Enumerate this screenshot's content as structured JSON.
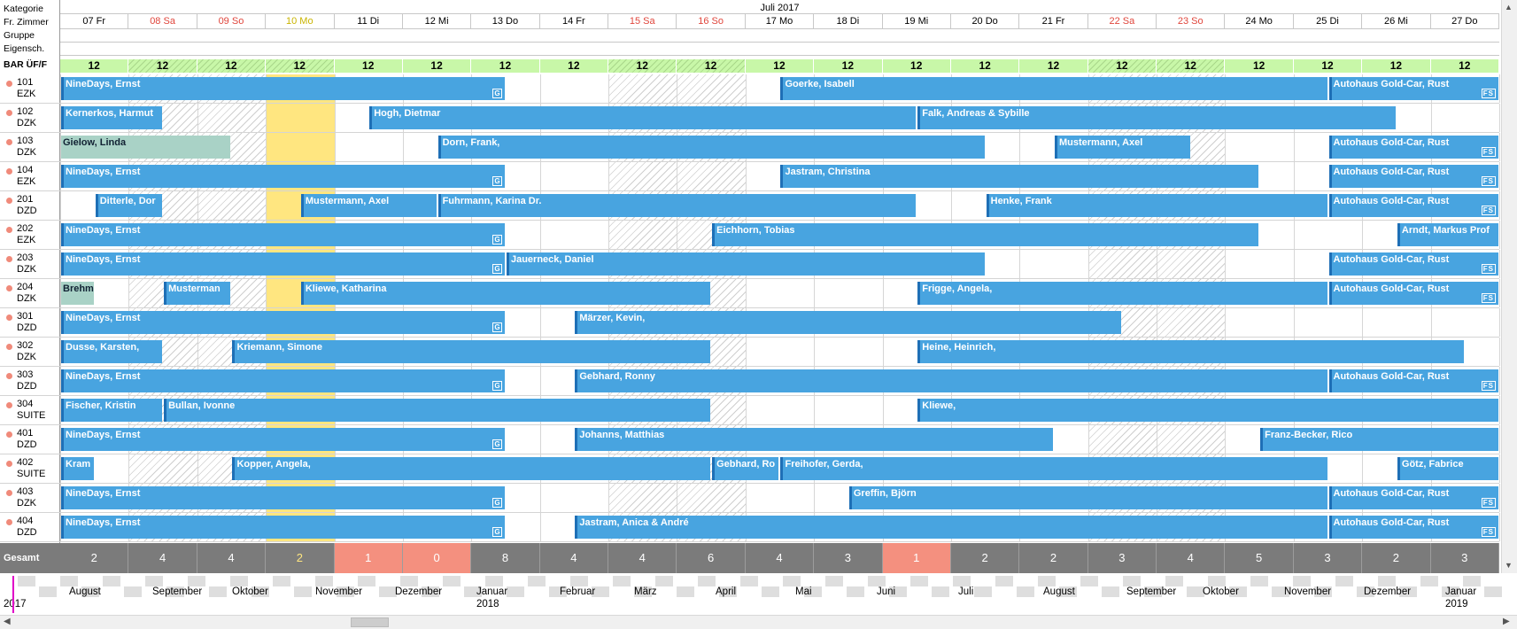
{
  "sidebar": {
    "kategorie": "Kategorie",
    "fr_zimmer": "Fr. Zimmer",
    "gruppe": "Gruppe",
    "eigensch": "Eigensch.",
    "bar": "BAR ÜF/F",
    "gesamt": "Gesamt"
  },
  "header": {
    "month": "Juli 2017"
  },
  "days": [
    {
      "label": "07 Fr",
      "color": "normal"
    },
    {
      "label": "08 Sa",
      "color": "red"
    },
    {
      "label": "09 So",
      "color": "red"
    },
    {
      "label": "10 Mo",
      "color": "yellow"
    },
    {
      "label": "11 Di",
      "color": "normal"
    },
    {
      "label": "12 Mi",
      "color": "normal"
    },
    {
      "label": "13 Do",
      "color": "normal"
    },
    {
      "label": "14 Fr",
      "color": "normal"
    },
    {
      "label": "15 Sa",
      "color": "red"
    },
    {
      "label": "16 So",
      "color": "red"
    },
    {
      "label": "17 Mo",
      "color": "normal"
    },
    {
      "label": "18 Di",
      "color": "normal"
    },
    {
      "label": "19 Mi",
      "color": "normal"
    },
    {
      "label": "20 Do",
      "color": "normal"
    },
    {
      "label": "21 Fr",
      "color": "normal"
    },
    {
      "label": "22 Sa",
      "color": "red"
    },
    {
      "label": "23 So",
      "color": "red"
    },
    {
      "label": "24 Mo",
      "color": "normal"
    },
    {
      "label": "25 Di",
      "color": "normal"
    },
    {
      "label": "26 Mi",
      "color": "normal"
    },
    {
      "label": "27 Do",
      "color": "normal"
    }
  ],
  "rates": [
    "12",
    "12",
    "12",
    "12",
    "12",
    "12",
    "12",
    "12",
    "12",
    "12",
    "12",
    "12",
    "12",
    "12",
    "12",
    "12",
    "12",
    "12",
    "12",
    "12",
    "12"
  ],
  "rooms": [
    {
      "num": "101",
      "cat": "EZK",
      "bookings": [
        {
          "name": "NineDays, Ernst",
          "from": 0,
          "to": 6.5,
          "badge": "G"
        },
        {
          "name": "Goerke, Isabell",
          "from": 10.5,
          "to": 18.5
        },
        {
          "name": "Autohaus Gold-Car, Rust",
          "from": 18.5,
          "to": 21,
          "badge": "FS"
        }
      ]
    },
    {
      "num": "102",
      "cat": "DZK",
      "bookings": [
        {
          "name": "Kernerkos, Harmut",
          "from": 0,
          "to": 1.5
        },
        {
          "name": "Hogh, Dietmar",
          "from": 4.5,
          "to": 12.5
        },
        {
          "name": "Falk, Andreas & Sybille",
          "from": 12.5,
          "to": 19.5
        }
      ]
    },
    {
      "num": "103",
      "cat": "DZK",
      "bookings": [
        {
          "name": "Gielow, Linda",
          "from": 0,
          "to": 2.5,
          "teal": true
        },
        {
          "name": "Dorn, Frank,",
          "from": 5.5,
          "to": 13.5
        },
        {
          "name": "Mustermann, Axel",
          "from": 14.5,
          "to": 16.5
        },
        {
          "name": "Autohaus Gold-Car, Rust",
          "from": 18.5,
          "to": 21,
          "badge": "FS"
        }
      ]
    },
    {
      "num": "104",
      "cat": "EZK",
      "bookings": [
        {
          "name": "NineDays, Ernst",
          "from": 0,
          "to": 6.5,
          "badge": "G"
        },
        {
          "name": "Jastram, Christina",
          "from": 10.5,
          "to": 17.5
        },
        {
          "name": "Autohaus Gold-Car, Rust",
          "from": 18.5,
          "to": 21,
          "badge": "FS"
        }
      ]
    },
    {
      "num": "201",
      "cat": "DZD",
      "bookings": [
        {
          "name": "Ditterle, Dor",
          "from": 0.5,
          "to": 1.5
        },
        {
          "name": "Mustermann, Axel",
          "from": 3.5,
          "to": 5.5
        },
        {
          "name": "Fuhrmann, Karina Dr.",
          "from": 5.5,
          "to": 12.5
        },
        {
          "name": "Henke, Frank",
          "from": 13.5,
          "to": 18.5
        },
        {
          "name": "Autohaus Gold-Car, Rust",
          "from": 18.5,
          "to": 21,
          "badge": "FS"
        }
      ]
    },
    {
      "num": "202",
      "cat": "EZK",
      "bookings": [
        {
          "name": "NineDays, Ernst",
          "from": 0,
          "to": 6.5,
          "badge": "G"
        },
        {
          "name": "Eichhorn, Tobias",
          "from": 9.5,
          "to": 17.5
        },
        {
          "name": "Arndt, Markus Prof",
          "from": 19.5,
          "to": 21
        }
      ]
    },
    {
      "num": "203",
      "cat": "DZK",
      "bookings": [
        {
          "name": "NineDays, Ernst",
          "from": 0,
          "to": 6.5,
          "badge": "G"
        },
        {
          "name": "Jauerneck, Daniel",
          "from": 6.5,
          "to": 13.5
        },
        {
          "name": "Autohaus Gold-Car, Rust",
          "from": 18.5,
          "to": 21,
          "badge": "FS"
        }
      ]
    },
    {
      "num": "204",
      "cat": "DZK",
      "bookings": [
        {
          "name": "Brehm",
          "from": 0,
          "to": 0.5,
          "teal": true
        },
        {
          "name": "Musterman",
          "from": 1.5,
          "to": 2.5
        },
        {
          "name": "Kliewe, Katharina",
          "from": 3.5,
          "to": 9.5
        },
        {
          "name": "Frigge, Angela,",
          "from": 12.5,
          "to": 18.5
        },
        {
          "name": "Autohaus Gold-Car, Rust",
          "from": 18.5,
          "to": 21,
          "badge": "FS"
        }
      ]
    },
    {
      "num": "301",
      "cat": "DZD",
      "bookings": [
        {
          "name": "NineDays, Ernst",
          "from": 0,
          "to": 6.5,
          "badge": "G"
        },
        {
          "name": "Märzer, Kevin,",
          "from": 7.5,
          "to": 15.5
        }
      ]
    },
    {
      "num": "302",
      "cat": "DZK",
      "bookings": [
        {
          "name": "Dusse, Karsten,",
          "from": 0,
          "to": 1.5
        },
        {
          "name": "Kriemann, Simone",
          "from": 2.5,
          "to": 9.5
        },
        {
          "name": "Heine, Heinrich,",
          "from": 12.5,
          "to": 20.5
        }
      ]
    },
    {
      "num": "303",
      "cat": "DZD",
      "bookings": [
        {
          "name": "NineDays, Ernst",
          "from": 0,
          "to": 6.5,
          "badge": "G"
        },
        {
          "name": "Gebhard, Ronny",
          "from": 7.5,
          "to": 18.5
        },
        {
          "name": "Autohaus Gold-Car, Rust",
          "from": 18.5,
          "to": 21,
          "badge": "FS"
        }
      ]
    },
    {
      "num": "304",
      "cat": "SUITE",
      "bookings": [
        {
          "name": "Fischer, Kristin",
          "from": 0,
          "to": 1.5
        },
        {
          "name": "Bullan, Ivonne",
          "from": 1.5,
          "to": 9.5
        },
        {
          "name": "Kliewe,",
          "from": 12.5,
          "to": 21
        }
      ]
    },
    {
      "num": "401",
      "cat": "DZD",
      "bookings": [
        {
          "name": "NineDays, Ernst",
          "from": 0,
          "to": 6.5,
          "badge": "G"
        },
        {
          "name": "Johanns, Matthias",
          "from": 7.5,
          "to": 14.5
        },
        {
          "name": "Franz-Becker, Rico",
          "from": 17.5,
          "to": 21
        }
      ]
    },
    {
      "num": "402",
      "cat": "SUITE",
      "bookings": [
        {
          "name": "Kram",
          "from": 0,
          "to": 0.5
        },
        {
          "name": "Kopper, Angela,",
          "from": 2.5,
          "to": 9.5
        },
        {
          "name": "Gebhard, Ro",
          "from": 9.5,
          "to": 10.5
        },
        {
          "name": "Freihofer, Gerda,",
          "from": 10.5,
          "to": 18.5
        },
        {
          "name": "Götz, Fabrice",
          "from": 19.5,
          "to": 21
        }
      ]
    },
    {
      "num": "403",
      "cat": "DZK",
      "bookings": [
        {
          "name": "NineDays, Ernst",
          "from": 0,
          "to": 6.5,
          "badge": "G"
        },
        {
          "name": "Greffin, Björn",
          "from": 11.5,
          "to": 18.5
        },
        {
          "name": "Autohaus Gold-Car, Rust",
          "from": 18.5,
          "to": 21,
          "badge": "FS"
        }
      ]
    },
    {
      "num": "404",
      "cat": "DZD",
      "bookings": [
        {
          "name": "NineDays, Ernst",
          "from": 0,
          "to": 6.5,
          "badge": "G"
        },
        {
          "name": "Jastram, Anica & André",
          "from": 7.5,
          "to": 18.5
        },
        {
          "name": "Autohaus Gold-Car, Rust",
          "from": 18.5,
          "to": 21,
          "badge": "FS"
        }
      ]
    }
  ],
  "totals": [
    {
      "v": "2",
      "c": "normal"
    },
    {
      "v": "4",
      "c": "normal"
    },
    {
      "v": "4",
      "c": "normal"
    },
    {
      "v": "2",
      "c": "yellow"
    },
    {
      "v": "1",
      "c": "red"
    },
    {
      "v": "0",
      "c": "red"
    },
    {
      "v": "8",
      "c": "normal"
    },
    {
      "v": "4",
      "c": "normal"
    },
    {
      "v": "4",
      "c": "normal"
    },
    {
      "v": "6",
      "c": "normal"
    },
    {
      "v": "4",
      "c": "normal"
    },
    {
      "v": "3",
      "c": "normal"
    },
    {
      "v": "1",
      "c": "red"
    },
    {
      "v": "2",
      "c": "normal"
    },
    {
      "v": "2",
      "c": "normal"
    },
    {
      "v": "3",
      "c": "normal"
    },
    {
      "v": "4",
      "c": "normal"
    },
    {
      "v": "5",
      "c": "normal"
    },
    {
      "v": "3",
      "c": "normal"
    },
    {
      "v": "2",
      "c": "normal"
    },
    {
      "v": "3",
      "c": "normal"
    }
  ],
  "timeline": {
    "months": [
      "August",
      "September",
      "Oktober",
      "November",
      "Dezember",
      "Januar",
      "Februar",
      "März",
      "April",
      "Mai",
      "Juni",
      "Juli",
      "August",
      "September",
      "Oktober",
      "November",
      "Dezember",
      "Januar"
    ],
    "years": [
      "2017",
      "2018",
      "2019"
    ]
  }
}
